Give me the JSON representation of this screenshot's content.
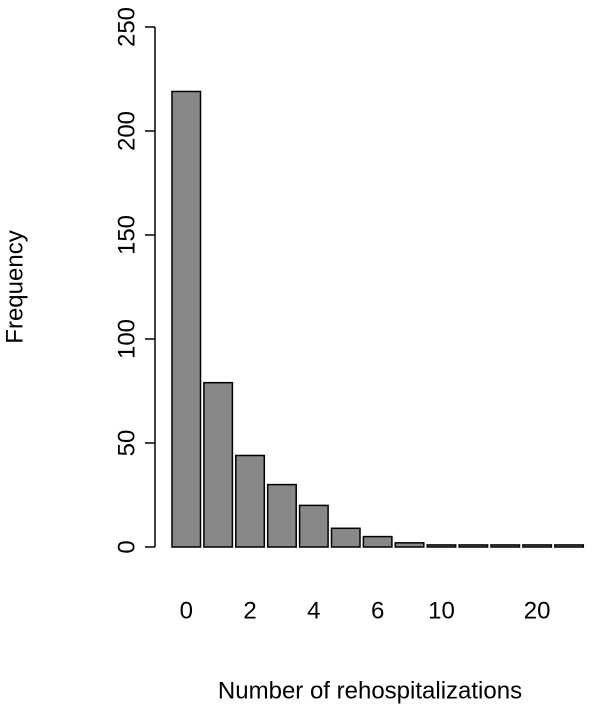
{
  "chart_data": {
    "type": "bar",
    "x_label": "Number of rehospitalizations",
    "y_label": "Frequency",
    "categories": [
      "0",
      null,
      "2",
      null,
      "4",
      null,
      "6",
      null,
      "10",
      null,
      null,
      "20",
      null
    ],
    "values": [
      219,
      79,
      44,
      30,
      20,
      9,
      5,
      2,
      1,
      1,
      1,
      1,
      1
    ],
    "color": "#888888",
    "ylim": [
      0,
      250
    ],
    "yticks": [
      0,
      50,
      100,
      150,
      200,
      250
    ]
  }
}
